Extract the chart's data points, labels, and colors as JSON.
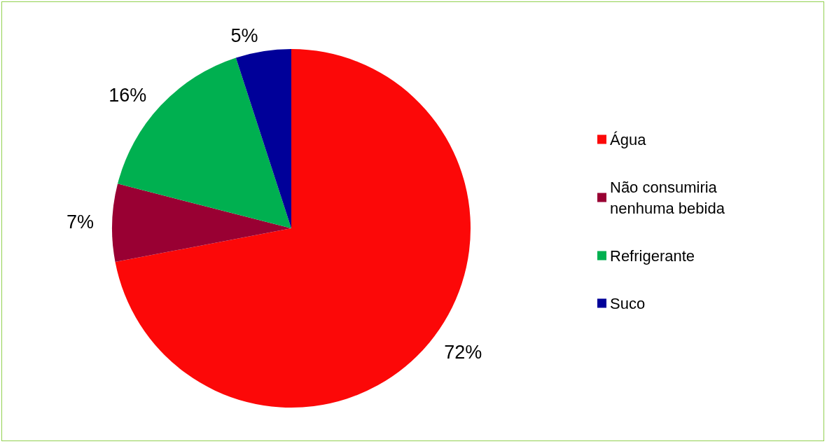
{
  "chart_data": {
    "type": "pie",
    "categories": [
      "Água",
      "Não consumiria nenhuma bebida",
      "Refrigerante",
      "Suco"
    ],
    "values": [
      72,
      7,
      16,
      5
    ],
    "value_labels": [
      "72%",
      "7%",
      "16%",
      "5%"
    ],
    "colors": [
      "#fc0808",
      "#990033",
      "#00b050",
      "#000099"
    ],
    "legend": "right"
  }
}
